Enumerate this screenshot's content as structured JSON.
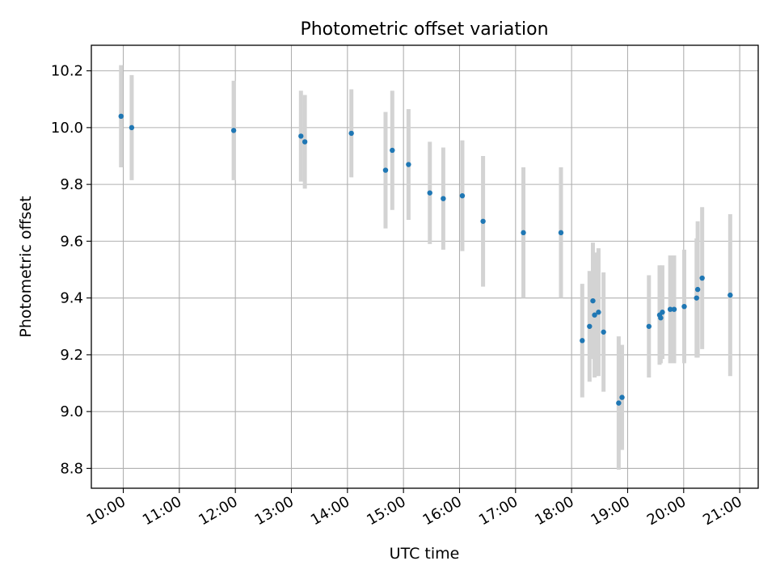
{
  "chart_data": {
    "type": "scatter",
    "title": "Photometric offset variation",
    "xlabel": "UTC time",
    "ylabel": "Photometric offset",
    "x_unit": "hours (UTC)",
    "xlim": [
      9.43,
      21.33
    ],
    "ylim": [
      8.73,
      10.29
    ],
    "grid": true,
    "x_ticks": [
      {
        "value": 10,
        "label": "10:00"
      },
      {
        "value": 11,
        "label": "11:00"
      },
      {
        "value": 12,
        "label": "12:00"
      },
      {
        "value": 13,
        "label": "13:00"
      },
      {
        "value": 14,
        "label": "14:00"
      },
      {
        "value": 15,
        "label": "15:00"
      },
      {
        "value": 16,
        "label": "16:00"
      },
      {
        "value": 17,
        "label": "17:00"
      },
      {
        "value": 18,
        "label": "18:00"
      },
      {
        "value": 19,
        "label": "19:00"
      },
      {
        "value": 20,
        "label": "20:00"
      },
      {
        "value": 21,
        "label": "21:00"
      }
    ],
    "y_ticks": [
      {
        "value": 8.8,
        "label": "8.8"
      },
      {
        "value": 9.0,
        "label": "9.0"
      },
      {
        "value": 9.2,
        "label": "9.2"
      },
      {
        "value": 9.4,
        "label": "9.4"
      },
      {
        "value": 9.6,
        "label": "9.6"
      },
      {
        "value": 9.8,
        "label": "9.8"
      },
      {
        "value": 10.0,
        "label": "10.0"
      },
      {
        "value": 10.2,
        "label": "10.2"
      }
    ],
    "colors": {
      "point": "#1f77b4",
      "errorbar": "#d3d3d3",
      "grid": "#b0b0b0"
    },
    "points": [
      {
        "x": 9.96,
        "y": 10.04,
        "err": 0.18
      },
      {
        "x": 10.15,
        "y": 10.0,
        "err": 0.185
      },
      {
        "x": 11.97,
        "y": 9.99,
        "err": 0.175
      },
      {
        "x": 13.17,
        "y": 9.97,
        "err": 0.16
      },
      {
        "x": 13.24,
        "y": 9.95,
        "err": 0.165
      },
      {
        "x": 14.07,
        "y": 9.98,
        "err": 0.155
      },
      {
        "x": 14.68,
        "y": 9.85,
        "err": 0.205
      },
      {
        "x": 14.8,
        "y": 9.92,
        "err": 0.21
      },
      {
        "x": 15.09,
        "y": 9.87,
        "err": 0.195
      },
      {
        "x": 15.47,
        "y": 9.77,
        "err": 0.18
      },
      {
        "x": 15.71,
        "y": 9.75,
        "err": 0.18
      },
      {
        "x": 16.05,
        "y": 9.76,
        "err": 0.195
      },
      {
        "x": 16.42,
        "y": 9.67,
        "err": 0.23
      },
      {
        "x": 17.14,
        "y": 9.63,
        "err": 0.23
      },
      {
        "x": 17.81,
        "y": 9.63,
        "err": 0.23
      },
      {
        "x": 18.19,
        "y": 9.25,
        "err": 0.2
      },
      {
        "x": 18.32,
        "y": 9.3,
        "err": 0.195
      },
      {
        "x": 18.38,
        "y": 9.39,
        "err": 0.205
      },
      {
        "x": 18.41,
        "y": 9.34,
        "err": 0.22
      },
      {
        "x": 18.48,
        "y": 9.35,
        "err": 0.225
      },
      {
        "x": 18.57,
        "y": 9.28,
        "err": 0.21
      },
      {
        "x": 18.84,
        "y": 9.03,
        "err": 0.235
      },
      {
        "x": 18.9,
        "y": 9.05,
        "err": 0.185
      },
      {
        "x": 19.38,
        "y": 9.3,
        "err": 0.18
      },
      {
        "x": 19.57,
        "y": 9.34,
        "err": 0.175
      },
      {
        "x": 19.59,
        "y": 9.33,
        "err": 0.16
      },
      {
        "x": 19.62,
        "y": 9.35,
        "err": 0.165
      },
      {
        "x": 19.76,
        "y": 9.36,
        "err": 0.19
      },
      {
        "x": 19.83,
        "y": 9.36,
        "err": 0.19
      },
      {
        "x": 20.01,
        "y": 9.37,
        "err": 0.2
      },
      {
        "x": 20.23,
        "y": 9.4,
        "err": 0.21
      },
      {
        "x": 20.25,
        "y": 9.43,
        "err": 0.24
      },
      {
        "x": 20.33,
        "y": 9.47,
        "err": 0.25
      },
      {
        "x": 20.83,
        "y": 9.41,
        "err": 0.285
      }
    ]
  }
}
